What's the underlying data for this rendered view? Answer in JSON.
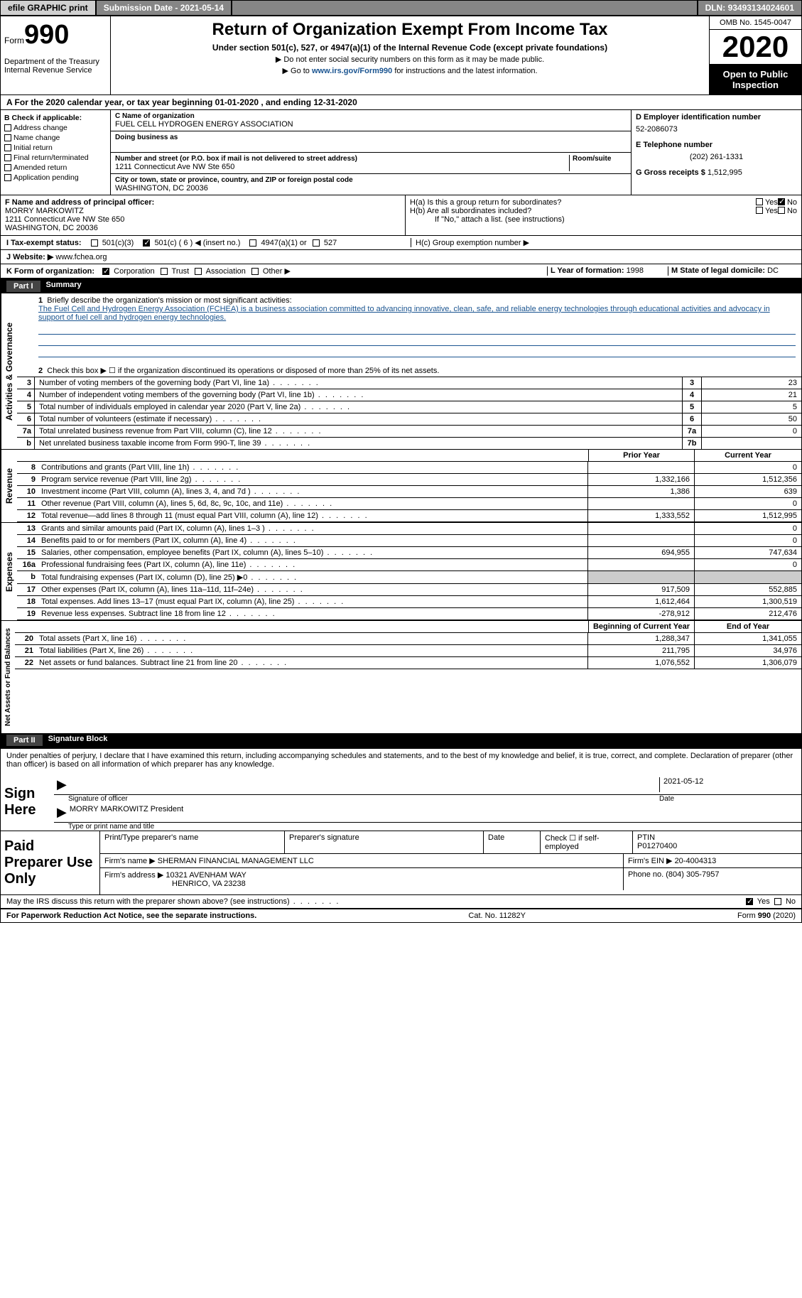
{
  "topbar": {
    "efile": "efile GRAPHIC print",
    "subdate_label": "Submission Date - ",
    "subdate": "2021-05-14",
    "dln_label": "DLN: ",
    "dln": "93493134024601"
  },
  "header": {
    "form_label": "Form",
    "form_num": "990",
    "dept": "Department of the Treasury\nInternal Revenue Service",
    "title": "Return of Organization Exempt From Income Tax",
    "subtitle": "Under section 501(c), 527, or 4947(a)(1) of the Internal Revenue Code (except private foundations)",
    "instr1": "▶ Do not enter social security numbers on this form as it may be made public.",
    "instr2_pre": "▶ Go to ",
    "instr2_link": "www.irs.gov/Form990",
    "instr2_post": " for instructions and the latest information.",
    "omb": "OMB No. 1545-0047",
    "year": "2020",
    "inspection": "Open to Public Inspection"
  },
  "period": "A For the 2020 calendar year, or tax year beginning 01-01-2020   , and ending 12-31-2020",
  "sectionB": {
    "label": "B Check if applicable:",
    "opts": [
      "Address change",
      "Name change",
      "Initial return",
      "Final return/terminated",
      "Amended return",
      "Application pending"
    ]
  },
  "sectionC": {
    "name_label": "C Name of organization",
    "name": "FUEL CELL HYDROGEN ENERGY ASSOCIATION",
    "dba_label": "Doing business as",
    "dba": "",
    "addr_label": "Number and street (or P.O. box if mail is not delivered to street address)",
    "room_label": "Room/suite",
    "addr": "1211 Connecticut Ave NW Ste 650",
    "city_label": "City or town, state or province, country, and ZIP or foreign postal code",
    "city": "WASHINGTON, DC  20036"
  },
  "sectionD": {
    "ein_label": "D Employer identification number",
    "ein": "52-2086073",
    "phone_label": "E Telephone number",
    "phone": "(202) 261-1331",
    "gross_label": "G Gross receipts $ ",
    "gross": "1,512,995"
  },
  "sectionF": {
    "label": "F  Name and address of principal officer:",
    "name": "MORRY MARKOWITZ",
    "addr": "1211 Connecticut Ave NW Ste 650\nWASHINGTON, DC  20036"
  },
  "sectionH": {
    "a": "H(a)  Is this a group return for subordinates?",
    "b": "H(b)  Are all subordinates included?",
    "b_note": "If \"No,\" attach a list. (see instructions)",
    "c": "H(c)  Group exemption number ▶",
    "yes": "Yes",
    "no": "No"
  },
  "sectionI": {
    "label": "I   Tax-exempt status:",
    "o1": "501(c)(3)",
    "o2": "501(c) ( 6 ) ◀ (insert no.)",
    "o3": "4947(a)(1) or",
    "o4": "527"
  },
  "sectionJ": {
    "label": "J   Website: ▶",
    "val": "  www.fchea.org"
  },
  "sectionK": {
    "label": "K Form of organization:",
    "opts": [
      "Corporation",
      "Trust",
      "Association",
      "Other ▶"
    ]
  },
  "sectionL": {
    "label": "L Year of formation: ",
    "val": "1998"
  },
  "sectionM": {
    "label": "M State of legal domicile: ",
    "val": "DC"
  },
  "part1": {
    "hdr": "Part I",
    "title": "Summary",
    "side_gov": "Activities & Governance",
    "side_rev": "Revenue",
    "side_exp": "Expenses",
    "side_net": "Net Assets or Fund Balances",
    "q1_label": "1",
    "q1": "Briefly describe the organization's mission or most significant activities:",
    "q1_text": "The Fuel Cell and Hydrogen Energy Association (FCHEA) is a business association committed to advancing innovative, clean, safe, and reliable energy technologies through educational activities and advocacy in support of fuel cell and hydrogen energy technologies.",
    "q2_label": "2",
    "q2": "Check this box ▶ ☐  if the organization discontinued its operations or disposed of more than 25% of its net assets.",
    "rows_gov": [
      {
        "n": "3",
        "d": "Number of voting members of the governing body (Part VI, line 1a)",
        "k": "3",
        "v": "23"
      },
      {
        "n": "4",
        "d": "Number of independent voting members of the governing body (Part VI, line 1b)",
        "k": "4",
        "v": "21"
      },
      {
        "n": "5",
        "d": "Total number of individuals employed in calendar year 2020 (Part V, line 2a)",
        "k": "5",
        "v": "5"
      },
      {
        "n": "6",
        "d": "Total number of volunteers (estimate if necessary)",
        "k": "6",
        "v": "50"
      },
      {
        "n": "7a",
        "d": "Total unrelated business revenue from Part VIII, column (C), line 12",
        "k": "7a",
        "v": "0"
      },
      {
        "n": "b",
        "d": "Net unrelated business taxable income from Form 990-T, line 39",
        "k": "7b",
        "v": ""
      }
    ],
    "col_prior": "Prior Year",
    "col_current": "Current Year",
    "col_begin": "Beginning of Current Year",
    "col_end": "End of Year",
    "rows_rev": [
      {
        "n": "8",
        "d": "Contributions and grants (Part VIII, line 1h)",
        "p": "",
        "c": "0"
      },
      {
        "n": "9",
        "d": "Program service revenue (Part VIII, line 2g)",
        "p": "1,332,166",
        "c": "1,512,356"
      },
      {
        "n": "10",
        "d": "Investment income (Part VIII, column (A), lines 3, 4, and 7d )",
        "p": "1,386",
        "c": "639"
      },
      {
        "n": "11",
        "d": "Other revenue (Part VIII, column (A), lines 5, 6d, 8c, 9c, 10c, and 11e)",
        "p": "",
        "c": "0"
      },
      {
        "n": "12",
        "d": "Total revenue—add lines 8 through 11 (must equal Part VIII, column (A), line 12)",
        "p": "1,333,552",
        "c": "1,512,995"
      }
    ],
    "rows_exp": [
      {
        "n": "13",
        "d": "Grants and similar amounts paid (Part IX, column (A), lines 1–3 )",
        "p": "",
        "c": "0"
      },
      {
        "n": "14",
        "d": "Benefits paid to or for members (Part IX, column (A), line 4)",
        "p": "",
        "c": "0"
      },
      {
        "n": "15",
        "d": "Salaries, other compensation, employee benefits (Part IX, column (A), lines 5–10)",
        "p": "694,955",
        "c": "747,634"
      },
      {
        "n": "16a",
        "d": "Professional fundraising fees (Part IX, column (A), line 11e)",
        "p": "",
        "c": "0"
      },
      {
        "n": "b",
        "d": "Total fundraising expenses (Part IX, column (D), line 25) ▶0",
        "p": "shaded",
        "c": "shaded"
      },
      {
        "n": "17",
        "d": "Other expenses (Part IX, column (A), lines 11a–11d, 11f–24e)",
        "p": "917,509",
        "c": "552,885"
      },
      {
        "n": "18",
        "d": "Total expenses. Add lines 13–17 (must equal Part IX, column (A), line 25)",
        "p": "1,612,464",
        "c": "1,300,519"
      },
      {
        "n": "19",
        "d": "Revenue less expenses. Subtract line 18 from line 12",
        "p": "-278,912",
        "c": "212,476"
      }
    ],
    "rows_net": [
      {
        "n": "20",
        "d": "Total assets (Part X, line 16)",
        "p": "1,288,347",
        "c": "1,341,055"
      },
      {
        "n": "21",
        "d": "Total liabilities (Part X, line 26)",
        "p": "211,795",
        "c": "34,976"
      },
      {
        "n": "22",
        "d": "Net assets or fund balances. Subtract line 21 from line 20",
        "p": "1,076,552",
        "c": "1,306,079"
      }
    ]
  },
  "part2": {
    "hdr": "Part II",
    "title": "Signature Block",
    "decl": "Under penalties of perjury, I declare that I have examined this return, including accompanying schedules and statements, and to the best of my knowledge and belief, it is true, correct, and complete. Declaration of preparer (other than officer) is based on all information of which preparer has any knowledge.",
    "sign_here": "Sign Here",
    "sig_officer": "Signature of officer",
    "sig_date": "2021-05-12",
    "sig_date_label": "Date",
    "officer_name": "MORRY MARKOWITZ  President",
    "name_type_label": "Type or print name and title",
    "paid_prep": "Paid Preparer Use Only",
    "prep_name_label": "Print/Type preparer's name",
    "prep_sig_label": "Preparer's signature",
    "date_label": "Date",
    "self_emp": "Check ☐ if self-employed",
    "ptin_label": "PTIN",
    "ptin": "P01270400",
    "firm_name_label": "Firm's name    ▶ ",
    "firm_name": "SHERMAN FINANCIAL MANAGEMENT LLC",
    "firm_ein_label": "Firm's EIN ▶ ",
    "firm_ein": "20-4004313",
    "firm_addr_label": "Firm's address ▶ ",
    "firm_addr": "10321 AVENHAM WAY",
    "firm_addr2": "HENRICO, VA  23238",
    "firm_phone_label": "Phone no. ",
    "firm_phone": "(804) 305-7957",
    "discuss": "May the IRS discuss this return with the preparer shown above? (see instructions)"
  },
  "footer": {
    "pra": "For Paperwork Reduction Act Notice, see the separate instructions.",
    "cat": "Cat. No. 11282Y",
    "form": "Form 990 (2020)"
  }
}
